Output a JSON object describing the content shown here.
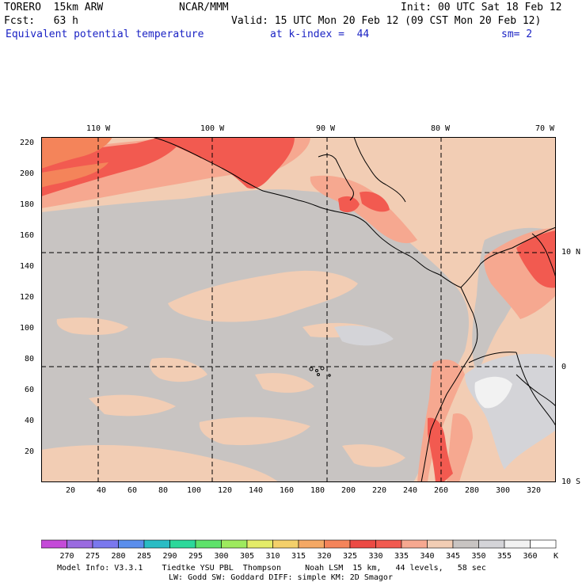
{
  "header": {
    "model": "TORERO  15km ARW",
    "center": "NCAR/MMM",
    "init": "Init: 00 UTC Sat 18 Feb 12",
    "fcst": "Fcst:   63 h",
    "valid": "Valid: 15 UTC Mon 20 Feb 12 (09 CST Mon 20 Feb 12)",
    "field": "Equivalent potential temperature",
    "level": "at k-index =  44",
    "smooth": "sm= 2"
  },
  "map": {
    "lon_labels": [
      "110 W",
      "100 W",
      "90 W",
      "80 W",
      "70 W"
    ],
    "lat_labels": [
      "10 N",
      "0",
      "10 S"
    ],
    "y_ticks": [
      "220",
      "200",
      "180",
      "160",
      "140",
      "120",
      "100",
      "80",
      "60",
      "40",
      "20"
    ],
    "x_ticks": [
      "20",
      "40",
      "60",
      "80",
      "100",
      "120",
      "140",
      "160",
      "180",
      "200",
      "220",
      "240",
      "260",
      "280",
      "300",
      "320"
    ]
  },
  "colorbar": {
    "unit": "K",
    "levels": [
      "270",
      "275",
      "280",
      "285",
      "290",
      "295",
      "300",
      "305",
      "310",
      "315",
      "320",
      "325",
      "330",
      "335",
      "340",
      "345",
      "350",
      "355",
      "360"
    ],
    "colors": [
      "#c44ad8",
      "#9a6ae0",
      "#7a78ee",
      "#5a8eec",
      "#2abcc4",
      "#2cd89a",
      "#5ee26a",
      "#9eea5e",
      "#e4ec68",
      "#f4d06a",
      "#f4a864",
      "#f4845a",
      "#ec4a44",
      "#f25a50",
      "#f6a890",
      "#f2cdb4",
      "#c8c4c2",
      "#d4d4d8",
      "#f2f2f2",
      "#ffffff"
    ]
  },
  "footer": {
    "line1": "Model Info: V3.3.1    Tiedtke YSU PBL  Thompson     Noah LSM  15 km,   44 levels,   58 sec",
    "line2": "LW: Godd SW: Goddard DIFF: simple KM: 2D Smagor"
  }
}
